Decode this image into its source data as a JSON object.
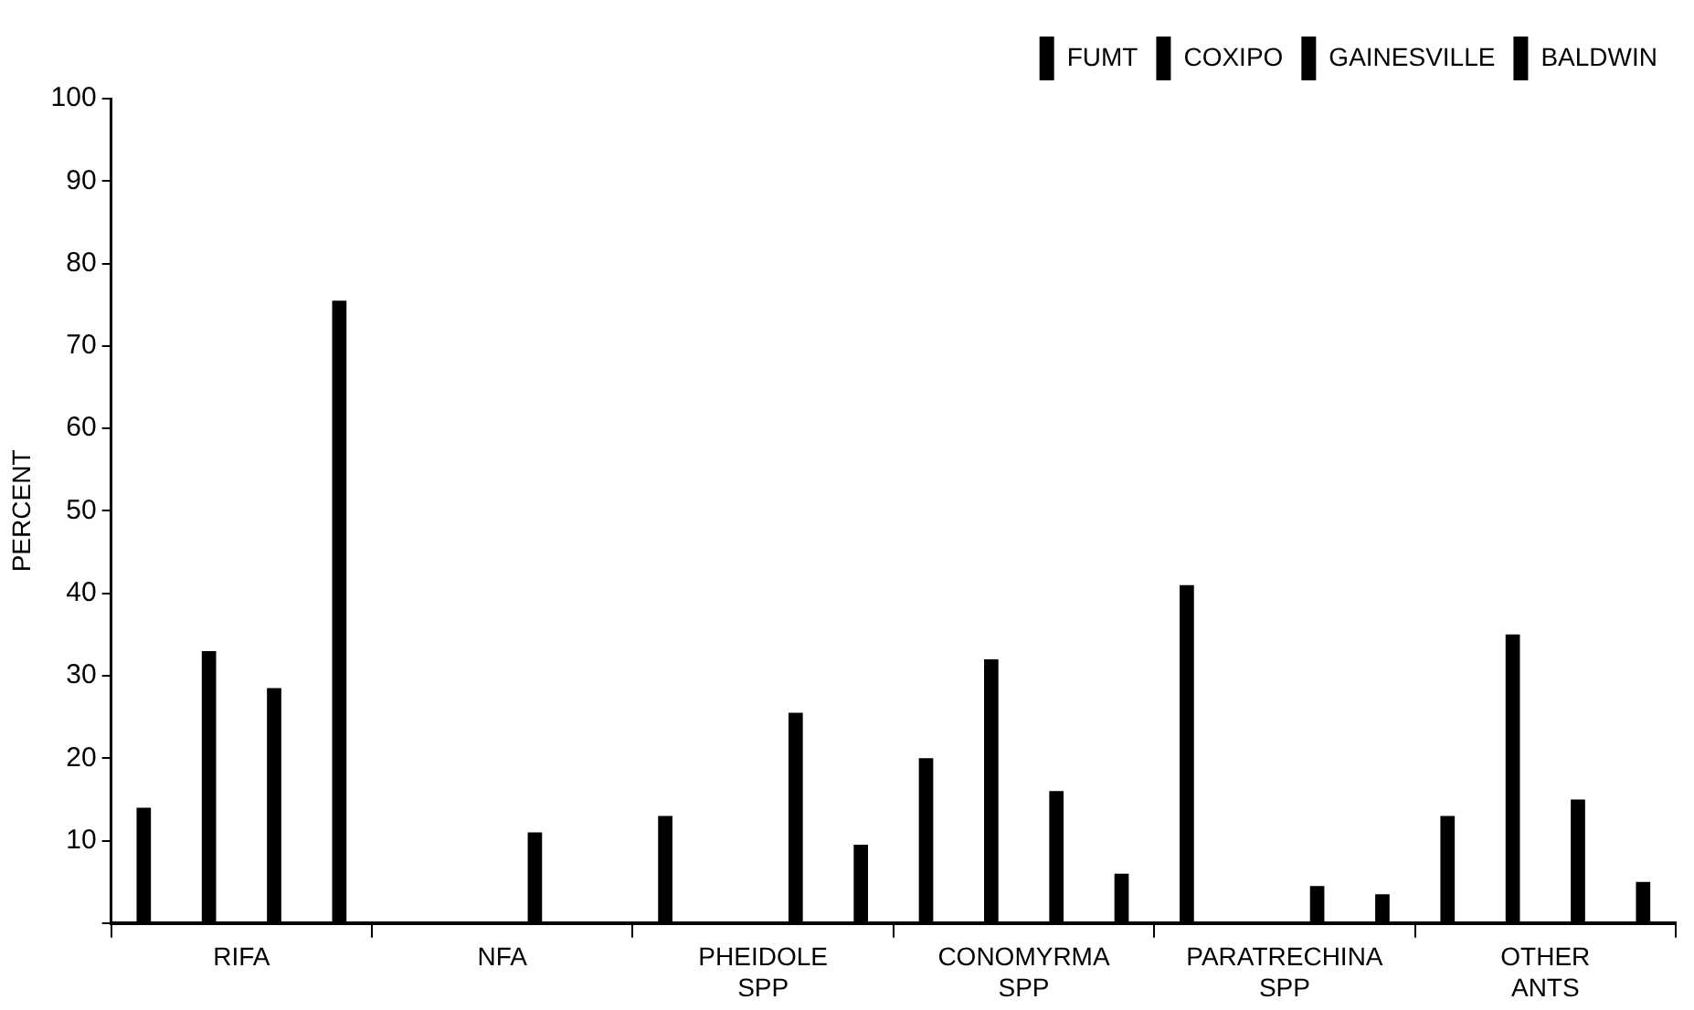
{
  "chart_data": {
    "type": "bar",
    "ylabel": "PERCENT",
    "categories": [
      "RIFA",
      "NFA",
      "PHEIDOLE SPP",
      "CONOMYRMA SPP",
      "PARATRECHINA SPP",
      "OTHER ANTS"
    ],
    "series": [
      {
        "name": "FUMT",
        "color": "#000000",
        "values": [
          14,
          0,
          13,
          20,
          41,
          13
        ]
      },
      {
        "name": "COXIPO",
        "color": "#000000",
        "values": [
          33,
          0,
          0,
          32,
          0,
          35
        ]
      },
      {
        "name": "GAINESVILLE",
        "color": "#000000",
        "values": [
          28.5,
          11,
          25.5,
          16,
          4.5,
          15
        ]
      },
      {
        "name": "BALDWIN",
        "color": "#000000",
        "values": [
          75.5,
          0,
          9.5,
          6,
          3.5,
          5
        ]
      }
    ],
    "ylim": [
      0,
      100
    ],
    "yticks": [
      {
        "value": 0,
        "label": null
      },
      10,
      20,
      30,
      40,
      50,
      60,
      70,
      80,
      90,
      100
    ],
    "grid": false,
    "legend": "top right"
  }
}
